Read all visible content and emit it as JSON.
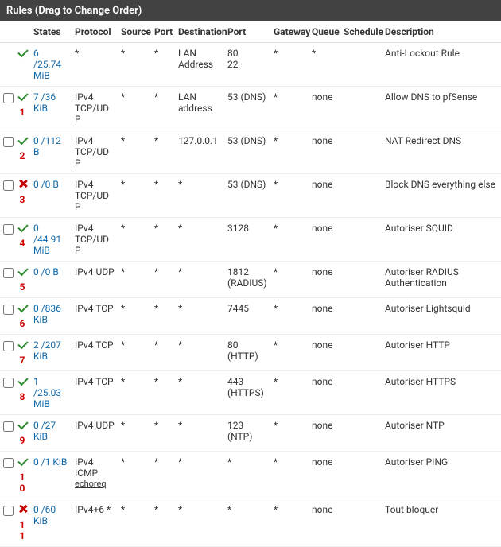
{
  "header": {
    "title": "Rules (Drag to Change Order)"
  },
  "columns": {
    "states": "States",
    "protocol": "Protocol",
    "source": "Source",
    "port1": "Port",
    "destination": "Destination",
    "port2": "Port",
    "gateway": "Gateway",
    "queue": "Queue",
    "schedule": "Schedule",
    "description": "Description"
  },
  "rows": [
    {
      "num": "",
      "showCheckbox": false,
      "status": "check",
      "states": "6 /25.74 MiB",
      "protocol": "*",
      "protocol_sub": "",
      "source": "*",
      "port1": "*",
      "destination": "LAN Address",
      "port2": "80\n22",
      "gateway": "*",
      "queue": "*",
      "schedule": "",
      "description": "Anti-Lockout Rule"
    },
    {
      "num": "1",
      "showCheckbox": true,
      "status": "check",
      "states": "7 /36 KiB",
      "protocol": "IPv4 TCP/UDP",
      "protocol_sub": "",
      "source": "*",
      "port1": "*",
      "destination": "LAN address",
      "port2": "53 (DNS)",
      "gateway": "*",
      "queue": "none",
      "schedule": "",
      "description": "Allow DNS to pfSense"
    },
    {
      "num": "2",
      "showCheckbox": true,
      "status": "check",
      "states": "0 /112 B",
      "protocol": "IPv4 TCP/UDP",
      "protocol_sub": "",
      "source": "*",
      "port1": "*",
      "destination": "127.0.0.1",
      "port2": "53 (DNS)",
      "gateway": "*",
      "queue": "none",
      "schedule": "",
      "description": "NAT Redirect DNS"
    },
    {
      "num": "3",
      "showCheckbox": true,
      "status": "x",
      "states": "0 /0 B",
      "protocol": "IPv4 TCP/UDP",
      "protocol_sub": "",
      "source": "*",
      "port1": "*",
      "destination": "*",
      "port2": "53 (DNS)",
      "gateway": "*",
      "queue": "none",
      "schedule": "",
      "description": "Block DNS everything else"
    },
    {
      "num": "4",
      "showCheckbox": true,
      "status": "check",
      "states": "0 /44.91 MiB",
      "protocol": "IPv4 TCP/UDP",
      "protocol_sub": "",
      "source": "*",
      "port1": "*",
      "destination": "*",
      "port2": "3128",
      "gateway": "*",
      "queue": "none",
      "schedule": "",
      "description": "Autoriser SQUID"
    },
    {
      "num": "5",
      "showCheckbox": true,
      "status": "check",
      "states": "0 /0 B",
      "protocol": "IPv4 UDP",
      "protocol_sub": "",
      "source": "*",
      "port1": "*",
      "destination": "*",
      "port2": "1812 (RADIUS)",
      "gateway": "*",
      "queue": "none",
      "schedule": "",
      "description": "Autoriser RADIUS Authentication"
    },
    {
      "num": "6",
      "showCheckbox": true,
      "status": "check",
      "states": "0 /836 KiB",
      "protocol": "IPv4 TCP",
      "protocol_sub": "",
      "source": "*",
      "port1": "*",
      "destination": "*",
      "port2": "7445",
      "gateway": "*",
      "queue": "none",
      "schedule": "",
      "description": "Autoriser Lightsquid"
    },
    {
      "num": "7",
      "showCheckbox": true,
      "status": "check",
      "states": "2 /207 KiB",
      "protocol": "IPv4 TCP",
      "protocol_sub": "",
      "source": "*",
      "port1": "*",
      "destination": "*",
      "port2": "80 (HTTP)",
      "gateway": "*",
      "queue": "none",
      "schedule": "",
      "description": "Autoriser HTTP"
    },
    {
      "num": "8",
      "showCheckbox": true,
      "status": "check",
      "states": "1 /25.03 MiB",
      "protocol": "IPv4 TCP",
      "protocol_sub": "",
      "source": "*",
      "port1": "*",
      "destination": "*",
      "port2": "443 (HTTPS)",
      "gateway": "*",
      "queue": "none",
      "schedule": "",
      "description": "Autoriser HTTPS"
    },
    {
      "num": "9",
      "showCheckbox": true,
      "status": "check",
      "states": "0 /27 KiB",
      "protocol": "IPv4 UDP",
      "protocol_sub": "",
      "source": "*",
      "port1": "*",
      "destination": "*",
      "port2": "123 (NTP)",
      "gateway": "*",
      "queue": "none",
      "schedule": "",
      "description": "Autoriser NTP"
    },
    {
      "num": "10",
      "showCheckbox": true,
      "status": "check",
      "states": "0 /1 KiB",
      "protocol": "IPv4 ICMP",
      "protocol_sub": "echoreq",
      "source": "*",
      "port1": "*",
      "destination": "*",
      "port2": "*",
      "gateway": "*",
      "queue": "none",
      "schedule": "",
      "description": "Autoriser PING"
    },
    {
      "num": "11",
      "showCheckbox": true,
      "status": "x",
      "states": "0 /60 KiB",
      "protocol": "IPv4+6 *",
      "protocol_sub": "",
      "source": "*",
      "port1": "*",
      "destination": "*",
      "port2": "*",
      "gateway": "*",
      "queue": "none",
      "schedule": "",
      "description": "Tout bloquer"
    }
  ]
}
